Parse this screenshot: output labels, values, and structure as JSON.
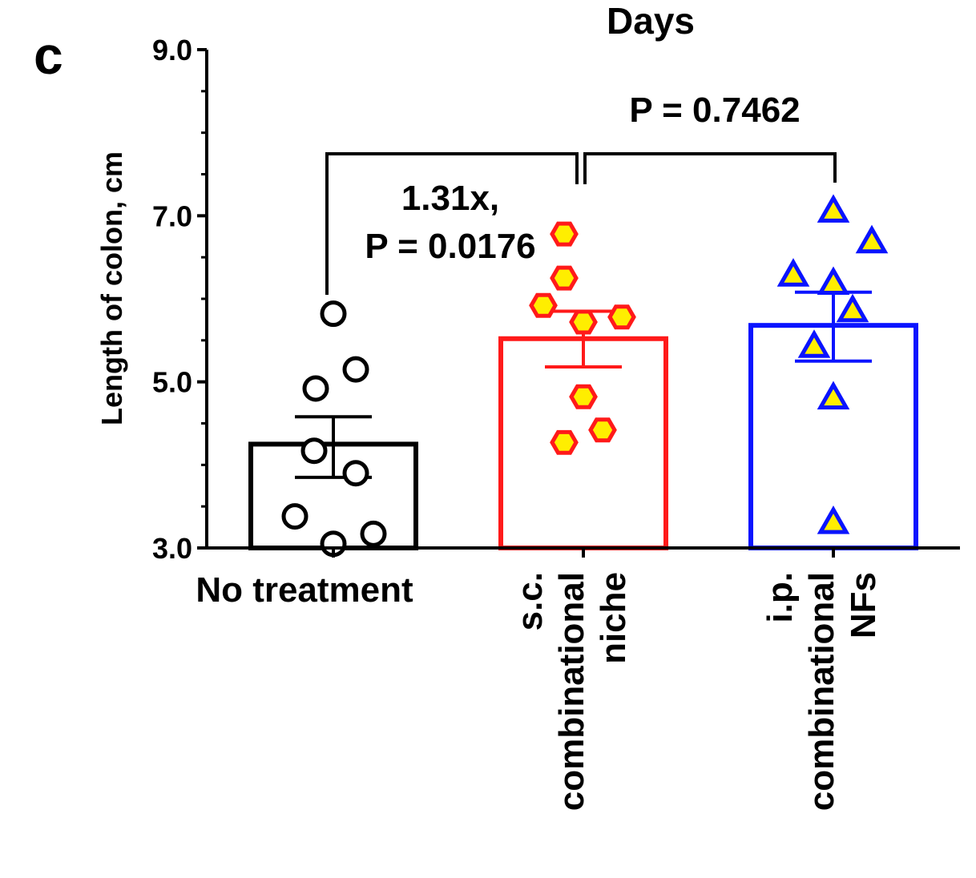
{
  "panel_letter": "c",
  "top_label": "Days",
  "chart_data": {
    "type": "bar",
    "ylabel": "Length of colon, cm",
    "ylim": [
      3.0,
      9.0
    ],
    "y_tick_labels": [
      "3.0",
      "5.0",
      "7.0",
      "9.0"
    ],
    "y_ticks": [
      3.0,
      5.0,
      7.0,
      9.0
    ],
    "categories": [
      [
        "No treatment"
      ],
      [
        "s.c.",
        "combinational",
        "niche"
      ],
      [
        "i.p.",
        "combinational",
        "NFs"
      ]
    ],
    "bars": [
      {
        "mean": 4.25,
        "sem_low": 3.85,
        "sem_high": 4.58,
        "color": "#000000",
        "marker": "circle",
        "marker_fill": "#ffffff",
        "points": [
          5.82,
          5.15,
          4.92,
          4.17,
          3.9,
          3.38,
          3.05,
          3.17
        ]
      },
      {
        "mean": 5.52,
        "sem_low": 5.18,
        "sem_high": 5.85,
        "color": "#ff1a1a",
        "marker": "hexagon",
        "marker_fill": "#ffee00",
        "points": [
          6.78,
          6.25,
          5.92,
          5.78,
          5.72,
          4.82,
          4.42,
          4.27
        ]
      },
      {
        "mean": 5.68,
        "sem_low": 5.25,
        "sem_high": 6.08,
        "color": "#0a14ff",
        "marker": "triangle",
        "marker_fill": "#ffee00",
        "points": [
          7.05,
          6.68,
          6.28,
          6.18,
          5.85,
          5.42,
          4.8,
          3.3
        ]
      }
    ],
    "annotations": [
      {
        "comparison": [
          "No treatment",
          "s.c. combinational niche"
        ],
        "lines": [
          "1.31x,",
          "P = 0.0176"
        ]
      },
      {
        "comparison": [
          "s.c. combinational niche",
          "i.p. combinational NFs"
        ],
        "lines": [
          "P = 0.7462"
        ]
      }
    ],
    "grid": false,
    "legend": "none"
  }
}
